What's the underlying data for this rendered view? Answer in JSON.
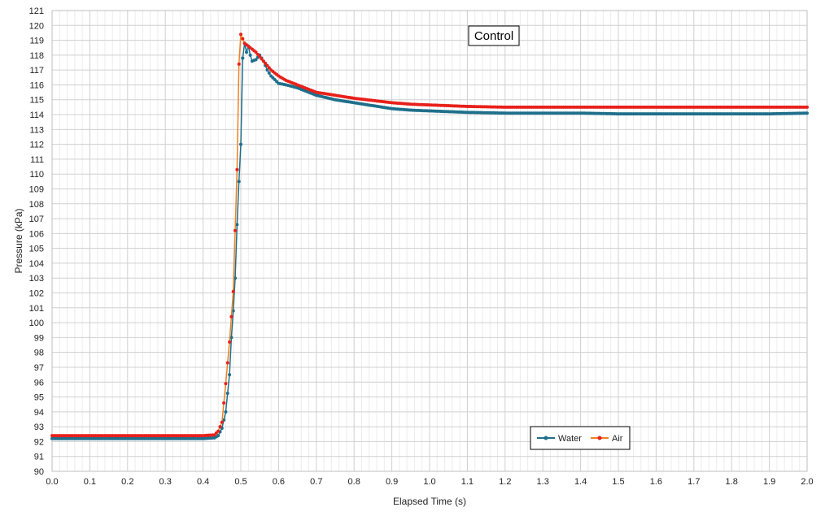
{
  "chart_data": {
    "type": "line",
    "title": "Control",
    "xlabel": "Elapsed Time (s)",
    "ylabel": "Pressure (kPa)",
    "xlim": [
      0,
      2
    ],
    "ylim": [
      90,
      121
    ],
    "x_major_step": 0.1,
    "y_major_step": 1,
    "x_tick_labels": [
      "0.0",
      "0.1",
      "0.2",
      "0.3",
      "0.4",
      "0.5",
      "0.6",
      "0.7",
      "0.8",
      "0.9",
      "1.0",
      "1.1",
      "1.2",
      "1.3",
      "1.4",
      "1.5",
      "1.6",
      "1.7",
      "1.8",
      "1.9",
      "2.0"
    ],
    "y_tick_labels": [
      "90",
      "91",
      "92",
      "93",
      "94",
      "95",
      "96",
      "97",
      "98",
      "99",
      "100",
      "101",
      "102",
      "103",
      "104",
      "105",
      "106",
      "107",
      "108",
      "109",
      "110",
      "111",
      "112",
      "113",
      "114",
      "115",
      "116",
      "117",
      "118",
      "119",
      "120",
      "121"
    ],
    "grid": true,
    "legend_position": "bottom-right",
    "series": [
      {
        "name": "Water",
        "color": "#1f6f8b",
        "marker_color": "#1f6f8b",
        "points": [
          [
            0.0,
            92.2
          ],
          [
            0.1,
            92.2
          ],
          [
            0.2,
            92.2
          ],
          [
            0.3,
            92.2
          ],
          [
            0.4,
            92.2
          ],
          [
            0.43,
            92.25
          ],
          [
            0.44,
            92.4
          ],
          [
            0.45,
            92.9
          ],
          [
            0.46,
            94.0
          ],
          [
            0.47,
            96.5
          ],
          [
            0.475,
            99.0
          ],
          [
            0.48,
            100.8
          ],
          [
            0.485,
            103.0
          ],
          [
            0.49,
            106.6
          ],
          [
            0.495,
            109.5
          ],
          [
            0.5,
            112.0
          ],
          [
            0.505,
            117.8
          ],
          [
            0.51,
            118.8
          ],
          [
            0.515,
            118.2
          ],
          [
            0.52,
            118.6
          ],
          [
            0.525,
            118.0
          ],
          [
            0.53,
            117.6
          ],
          [
            0.54,
            117.7
          ],
          [
            0.55,
            118.0
          ],
          [
            0.56,
            117.6
          ],
          [
            0.57,
            117.0
          ],
          [
            0.58,
            116.6
          ],
          [
            0.6,
            116.1
          ],
          [
            0.62,
            116.0
          ],
          [
            0.65,
            115.8
          ],
          [
            0.68,
            115.5
          ],
          [
            0.7,
            115.3
          ],
          [
            0.75,
            115.0
          ],
          [
            0.8,
            114.8
          ],
          [
            0.85,
            114.6
          ],
          [
            0.9,
            114.4
          ],
          [
            0.95,
            114.3
          ],
          [
            1.0,
            114.25
          ],
          [
            1.05,
            114.2
          ],
          [
            1.1,
            114.15
          ],
          [
            1.2,
            114.1
          ],
          [
            1.3,
            114.1
          ],
          [
            1.4,
            114.1
          ],
          [
            1.5,
            114.05
          ],
          [
            1.6,
            114.05
          ],
          [
            1.7,
            114.05
          ],
          [
            1.8,
            114.05
          ],
          [
            1.9,
            114.05
          ],
          [
            2.0,
            114.1
          ]
        ]
      },
      {
        "name": "Air",
        "color": "#f08020",
        "marker_color": "#e8201a",
        "points": [
          [
            0.0,
            92.4
          ],
          [
            0.1,
            92.4
          ],
          [
            0.2,
            92.4
          ],
          [
            0.3,
            92.4
          ],
          [
            0.4,
            92.4
          ],
          [
            0.43,
            92.45
          ],
          [
            0.44,
            92.7
          ],
          [
            0.45,
            93.3
          ],
          [
            0.455,
            94.6
          ],
          [
            0.46,
            95.9
          ],
          [
            0.47,
            98.7
          ],
          [
            0.48,
            102.1
          ],
          [
            0.49,
            110.3
          ],
          [
            0.495,
            117.4
          ],
          [
            0.5,
            119.4
          ],
          [
            0.505,
            119.1
          ],
          [
            0.51,
            118.8
          ],
          [
            0.52,
            118.6
          ],
          [
            0.53,
            118.4
          ],
          [
            0.54,
            118.2
          ],
          [
            0.55,
            117.9
          ],
          [
            0.56,
            117.6
          ],
          [
            0.57,
            117.3
          ],
          [
            0.58,
            117.0
          ],
          [
            0.6,
            116.6
          ],
          [
            0.62,
            116.3
          ],
          [
            0.65,
            116.0
          ],
          [
            0.68,
            115.7
          ],
          [
            0.7,
            115.5
          ],
          [
            0.75,
            115.3
          ],
          [
            0.8,
            115.1
          ],
          [
            0.85,
            114.95
          ],
          [
            0.9,
            114.8
          ],
          [
            0.95,
            114.7
          ],
          [
            1.0,
            114.65
          ],
          [
            1.05,
            114.6
          ],
          [
            1.1,
            114.55
          ],
          [
            1.2,
            114.5
          ],
          [
            1.3,
            114.5
          ],
          [
            1.4,
            114.5
          ],
          [
            1.5,
            114.5
          ],
          [
            1.6,
            114.5
          ],
          [
            1.7,
            114.5
          ],
          [
            1.8,
            114.5
          ],
          [
            1.9,
            114.5
          ],
          [
            2.0,
            114.5
          ]
        ]
      }
    ]
  }
}
